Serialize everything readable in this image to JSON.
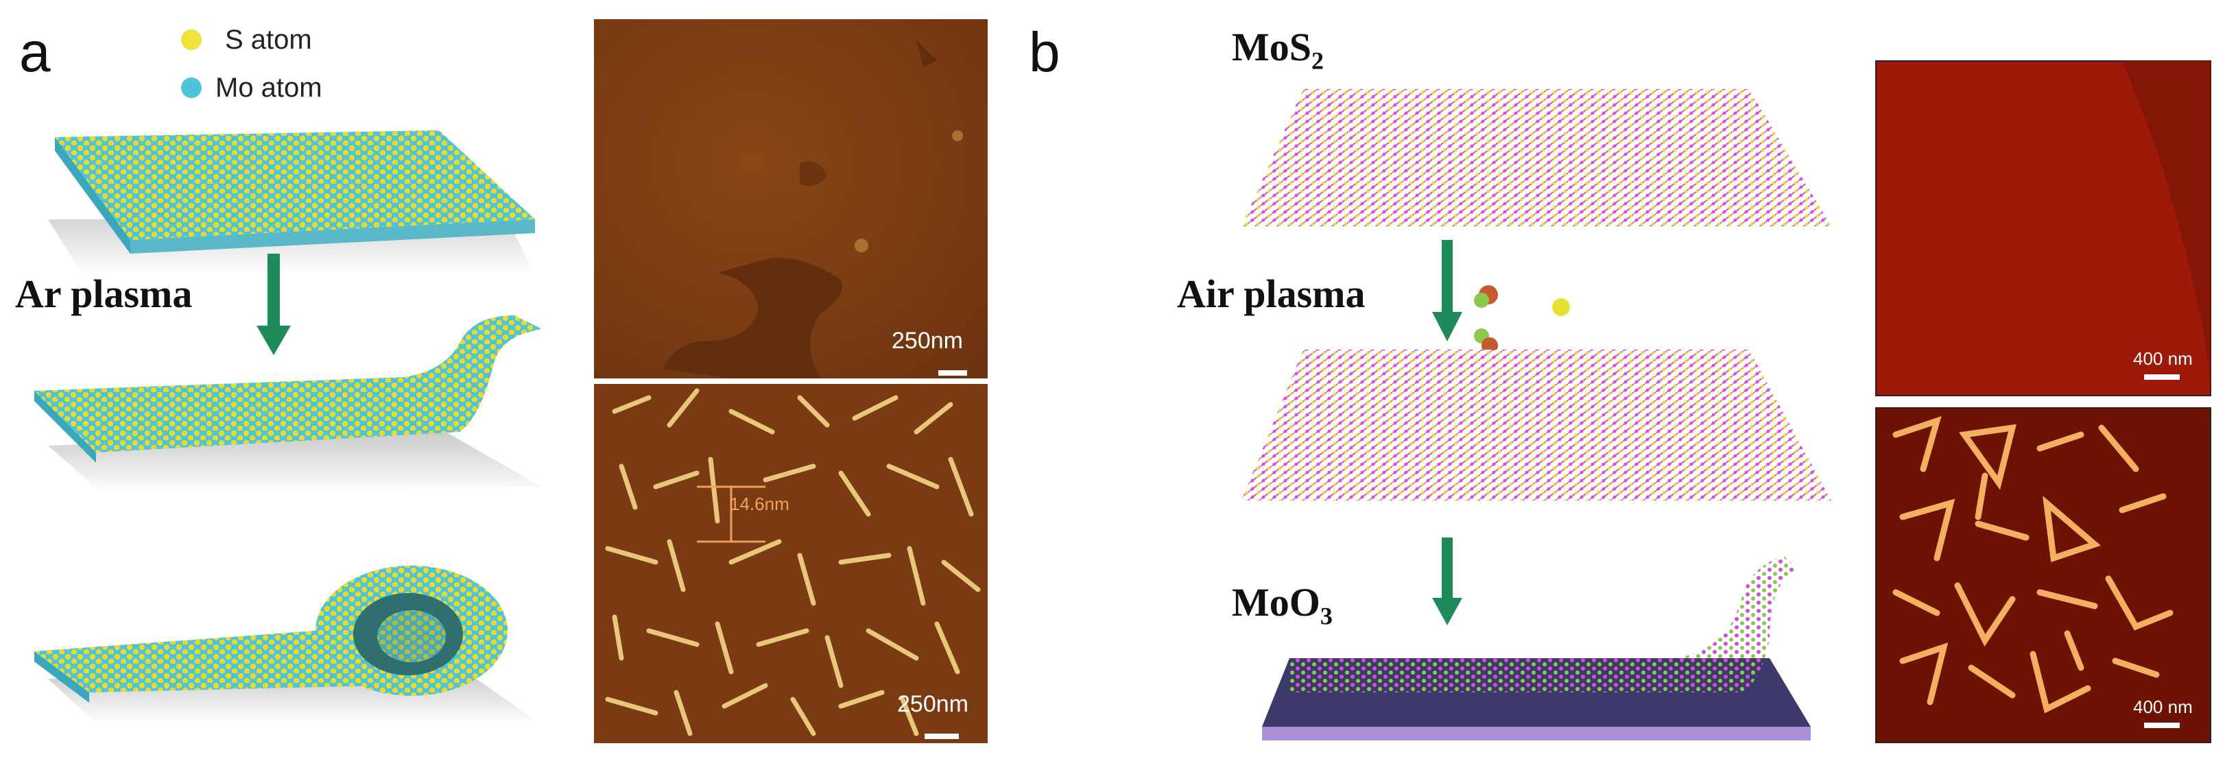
{
  "panel_a": {
    "letter": "a",
    "legend": [
      {
        "label": "S  atom",
        "color": "#f2e23c"
      },
      {
        "label": "Mo atom",
        "color": "#4fc3d8"
      }
    ],
    "process_label": "Ar plasma",
    "afm_top_scale": "250nm",
    "afm_bottom_scale": "250nm",
    "afm_bottom_annotation": "14.6nm"
  },
  "panel_b": {
    "letter": "b",
    "label_top": "MoS",
    "label_top_sub": "2",
    "process_label": "Air plasma",
    "label_bottom": "MoO",
    "label_bottom_sub": "3",
    "afm_top_scale": "400 nm",
    "afm_bottom_scale": "400 nm"
  },
  "colors": {
    "arrow": "#1f8a5a",
    "s_atom": "#f2e23c",
    "mo_atom_a": "#4fc3d8",
    "mo_atom_b": "#d94fd0",
    "afm_brown": "#7a3a12",
    "afm_red": "#9e1a08",
    "substrate": "#3c3a6a"
  }
}
